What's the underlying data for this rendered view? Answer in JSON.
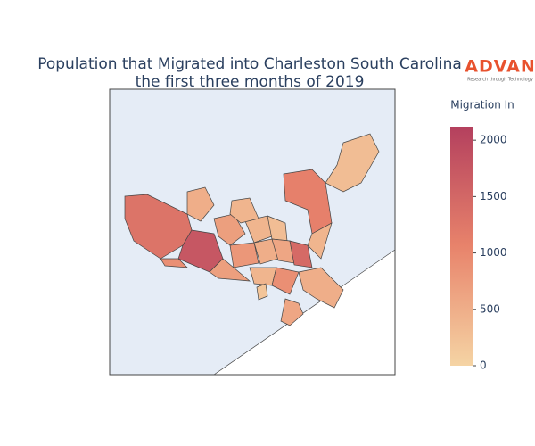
{
  "chart_data": {
    "type": "choropleth",
    "title": [
      "Population that Migrated into Charleston South Carolina",
      "the first three months of 2019"
    ],
    "values": [
      1300,
      1750,
      1100,
      300,
      700,
      400,
      300,
      800,
      500,
      600,
      1450,
      700,
      400,
      900,
      500,
      400,
      600,
      500,
      400,
      900,
      200
    ],
    "colorscale": [
      "#f5d4a4",
      "#e8836b",
      "#b4405e"
    ],
    "colorbar": {
      "title": "Migration In",
      "lim": [
        0,
        2120
      ],
      "ticks": [
        0,
        500,
        1000,
        1500,
        2000
      ]
    },
    "logo": {
      "text": "ADVAN",
      "tagline": "Research through Technology"
    }
  }
}
